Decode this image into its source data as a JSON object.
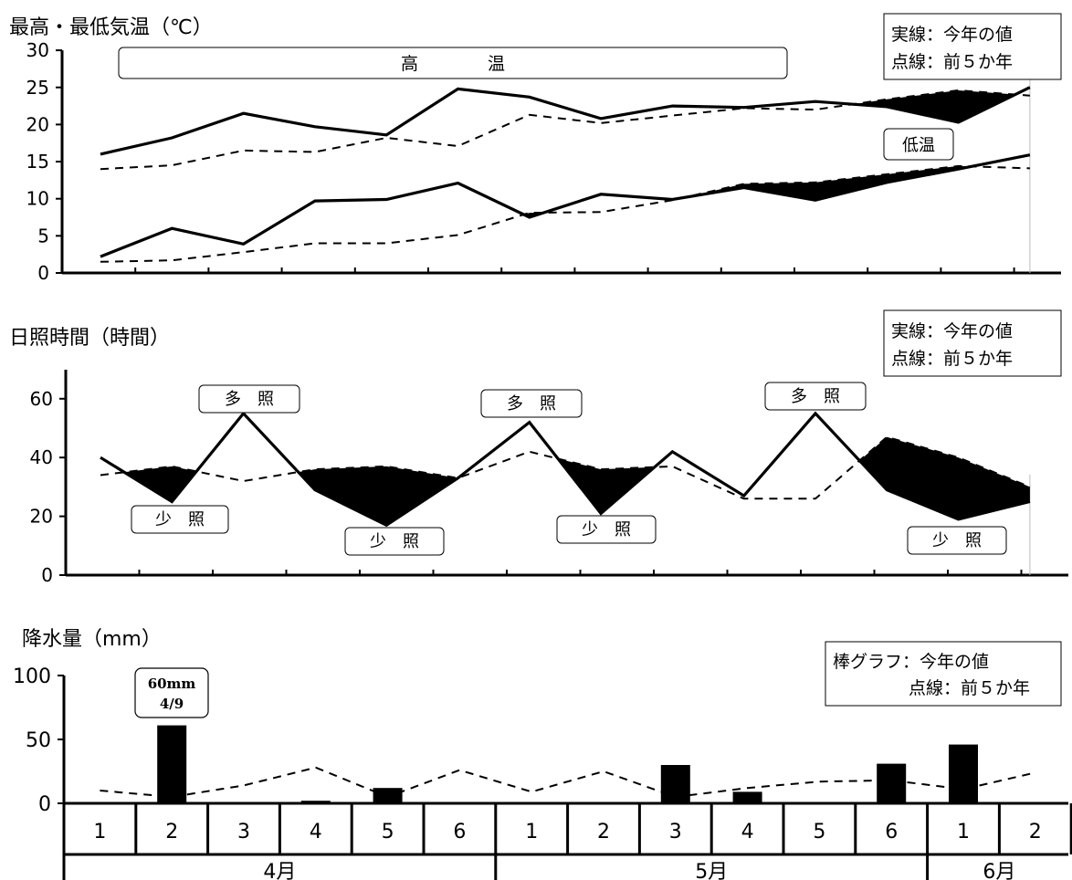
{
  "chart_data": [
    {
      "type": "line",
      "title": "最高・最低気温（℃）",
      "ylim": [
        0,
        30
      ],
      "yticks": [
        0,
        5,
        10,
        15,
        20,
        25,
        30
      ],
      "legend": [
        "実線：今年の値",
        "点線：前５か年"
      ],
      "legend_position": "top-right",
      "series": [
        {
          "values": [
            16,
            18.2,
            21.5,
            19.7,
            18.6,
            24.8,
            23.7,
            20.8,
            22.5,
            22.3,
            23.1,
            22.4,
            20.3,
            25.0
          ]
        },
        {
          "values": [
            14,
            14.5,
            16.5,
            16.3,
            18.2,
            17.1,
            21.3,
            20.2,
            21.2,
            22.2,
            22.0,
            23.4,
            24.6,
            23.9
          ]
        },
        {
          "values": [
            2.2,
            6.0,
            3.9,
            9.7,
            9.9,
            12.1,
            7.5,
            10.6,
            9.9,
            11.5,
            9.8,
            12.2,
            14.0,
            15.9
          ]
        },
        {
          "values": [
            1.5,
            1.7,
            2.8,
            4.0,
            4.0,
            5.1,
            8.1,
            8.2,
            9.8,
            12.0,
            12.2,
            13.3,
            14.4,
            14.1
          ]
        }
      ],
      "annotations": [
        "高　　　　温",
        "低温"
      ]
    },
    {
      "type": "line",
      "title": "日照時間（時間）",
      "ylim": [
        0,
        70
      ],
      "yticks": [
        0,
        20,
        40,
        60
      ],
      "legend": [
        "実線：今年の値",
        "点線：前５か年"
      ],
      "legend_position": "top-right",
      "series": [
        {
          "values": [
            40,
            25,
            55,
            29,
            17,
            33,
            52,
            21,
            42,
            27,
            55,
            29,
            19,
            25
          ]
        },
        {
          "values": [
            34,
            37,
            32,
            36,
            37,
            33,
            42,
            36,
            37,
            26,
            26,
            47,
            40,
            30
          ]
        }
      ],
      "annotations": [
        "多　照",
        "多　照",
        "多　照",
        "少　照",
        "少　照",
        "少　照",
        "少　照"
      ]
    },
    {
      "type": "bar",
      "title": "降水量（mm）",
      "ylim": [
        0,
        100
      ],
      "yticks": [
        0,
        50,
        100
      ],
      "legend": [
        "棒グラフ：今年の値",
        "点線：前５か年"
      ],
      "legend_position": "top-right",
      "categories": [
        "1",
        "2",
        "3",
        "4",
        "5",
        "6",
        "1",
        "2",
        "3",
        "4",
        "5",
        "6",
        "1",
        "2"
      ],
      "month_labels": [
        "4月",
        "5月",
        "6月"
      ],
      "series": [
        {
          "values": [
            0,
            61,
            0,
            2,
            12,
            0,
            0,
            0,
            30,
            9,
            0,
            31,
            46,
            0
          ]
        },
        {
          "values": [
            10,
            5,
            14,
            28,
            5,
            26,
            9,
            25,
            5,
            12,
            17,
            18,
            11,
            24
          ]
        }
      ],
      "annotation": {
        "line1": "60mm",
        "line2": "4/9"
      }
    }
  ]
}
